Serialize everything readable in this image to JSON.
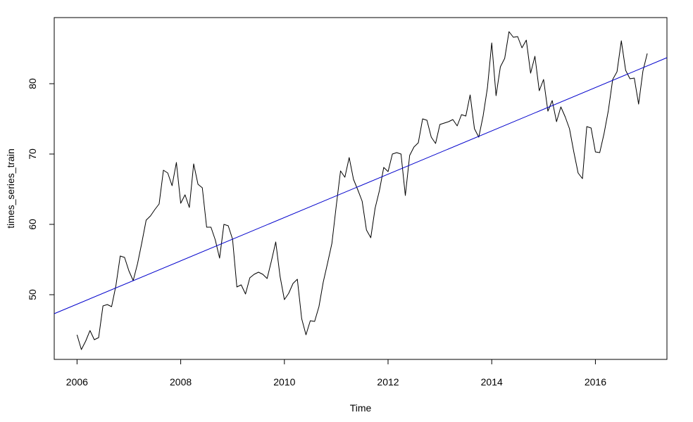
{
  "chart_data": {
    "type": "line",
    "title": "",
    "xlabel": "Time",
    "ylabel": "times_series_train",
    "xlim": [
      2005.56,
      2017.38
    ],
    "ylim": [
      40.8,
      89.4
    ],
    "xticks": [
      2006,
      2008,
      2010,
      2012,
      2014,
      2016
    ],
    "xtick_labels": [
      "2006",
      "2008",
      "2010",
      "2012",
      "2014",
      "2016"
    ],
    "yticks": [
      50,
      60,
      70,
      80
    ],
    "ytick_labels": [
      "50",
      "60",
      "70",
      "80"
    ],
    "grid": false,
    "legend": "none",
    "series": [
      {
        "color": "#000000",
        "start": 2006.0,
        "step": 0.0833333,
        "values": [
          44.3,
          42.2,
          43.4,
          44.9,
          43.6,
          43.9,
          48.4,
          48.6,
          48.3,
          51.3,
          55.5,
          55.3,
          53.4,
          52.0,
          54.4,
          57.4,
          60.6,
          61.2,
          62.1,
          62.9,
          67.7,
          67.3,
          65.5,
          68.8,
          63.0,
          64.2,
          62.4,
          68.6,
          65.7,
          65.2,
          59.6,
          59.6,
          57.8,
          55.2,
          60.0,
          59.8,
          57.9,
          51.1,
          51.4,
          50.1,
          52.4,
          52.9,
          53.2,
          52.9,
          52.3,
          54.8,
          57.5,
          52.6,
          49.3,
          50.2,
          51.6,
          52.2,
          46.6,
          44.3,
          46.3,
          46.2,
          48.3,
          51.8,
          54.5,
          57.3,
          62.6,
          67.6,
          66.7,
          69.5,
          66.4,
          64.9,
          63.3,
          59.2,
          58.1,
          62.3,
          64.8,
          68.1,
          67.5,
          70.0,
          70.2,
          70.0,
          64.1,
          69.8,
          71.0,
          71.6,
          75.0,
          74.8,
          72.4,
          71.5,
          74.2,
          74.4,
          74.6,
          74.9,
          74.0,
          75.6,
          75.4,
          78.4,
          73.6,
          72.4,
          75.4,
          79.4,
          85.8,
          78.3,
          82.4,
          83.6,
          87.4,
          86.6,
          86.7,
          85.1,
          86.2,
          81.5,
          83.9,
          79.0,
          80.6,
          76.1,
          77.6,
          74.6,
          76.7,
          75.3,
          73.6,
          70.3,
          67.3,
          66.5,
          73.9,
          73.7,
          70.3,
          70.2,
          72.9,
          76.2,
          80.6,
          81.7,
          86.1,
          81.9,
          80.7,
          80.8,
          77.1,
          81.8,
          84.3
        ]
      },
      {
        "color": "#0000cc",
        "x": [
          2005.56,
          2017.38
        ],
        "values": [
          47.3,
          83.7
        ]
      }
    ]
  }
}
